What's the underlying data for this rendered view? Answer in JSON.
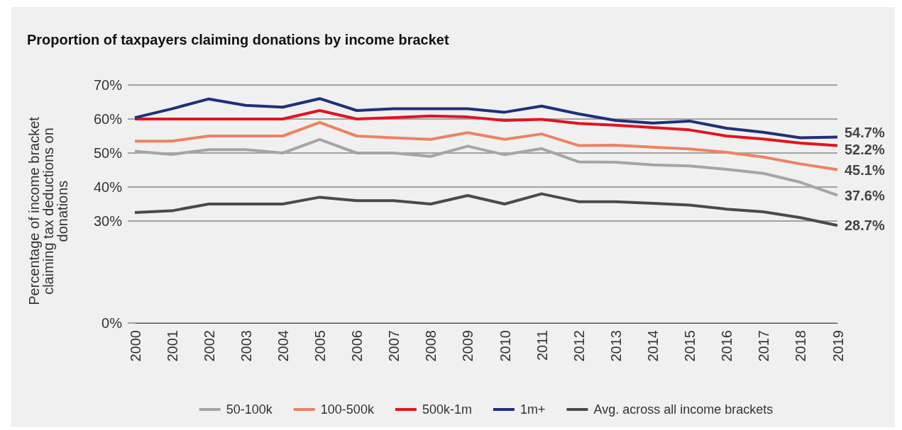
{
  "chart_data": {
    "type": "line",
    "title": "Proportion of taxpayers claiming donations by income bracket",
    "ylabel": "Percentage of income bracket claiming tax deductions on donations",
    "categories": [
      "2000",
      "2001",
      "2002",
      "2003",
      "2004",
      "2005",
      "2006",
      "2007",
      "2008",
      "2009",
      "2010",
      "2011",
      "2012",
      "2013",
      "2014",
      "2015",
      "2016",
      "2017",
      "2018",
      "2019"
    ],
    "ylim": [
      0,
      70
    ],
    "yticks": [
      {
        "value": 0,
        "label": "0%"
      },
      {
        "value": 30,
        "label": "30%"
      },
      {
        "value": 40,
        "label": "40%"
      },
      {
        "value": 50,
        "label": "50%"
      },
      {
        "value": 60,
        "label": "60%"
      },
      {
        "value": 70,
        "label": "70%"
      }
    ],
    "grid": "y",
    "legend": "bottom",
    "marker": "none",
    "line_style": "solid",
    "series": [
      {
        "name": "50-100k",
        "color": "#a5a5a8",
        "values": [
          50.5,
          49.6,
          51,
          51,
          50,
          54,
          50,
          50,
          49,
          52,
          49.5,
          51.3,
          47.4,
          47.3,
          46.5,
          46.2,
          45.2,
          44,
          41.4,
          37.6
        ],
        "value_labels": [
          null,
          null,
          null,
          null,
          null,
          null,
          null,
          null,
          null,
          null,
          null,
          null,
          null,
          null,
          null,
          null,
          null,
          null,
          null,
          "37.6%"
        ]
      },
      {
        "name": "100-500k",
        "color": "#ee8262",
        "values": [
          53.5,
          53.5,
          55,
          55,
          55,
          59,
          55,
          54.5,
          54,
          56,
          54,
          55.6,
          52.2,
          52.3,
          51.7,
          51.2,
          50.2,
          48.8,
          46.8,
          45.1
        ],
        "value_labels": [
          null,
          null,
          null,
          null,
          null,
          null,
          null,
          null,
          null,
          null,
          null,
          null,
          null,
          null,
          null,
          null,
          null,
          null,
          null,
          "45.1%"
        ]
      },
      {
        "name": "500k-1m",
        "color": "#e0141e",
        "values": [
          60,
          60,
          60,
          60,
          60,
          62.5,
          60,
          60.4,
          60.9,
          60.6,
          59.6,
          59.9,
          58.7,
          58.2,
          57.5,
          56.8,
          55,
          54.1,
          52.9,
          52.2
        ],
        "value_labels": [
          null,
          null,
          null,
          null,
          null,
          null,
          null,
          null,
          null,
          null,
          null,
          null,
          null,
          null,
          null,
          null,
          null,
          null,
          null,
          "52.2%"
        ]
      },
      {
        "name": "1m+",
        "color": "#1f2f7a",
        "values": [
          60.4,
          63,
          65.9,
          64,
          63.5,
          66,
          62.5,
          63,
          63,
          63,
          62,
          63.8,
          61.5,
          59.6,
          58.8,
          59.4,
          57.3,
          56.1,
          54.5,
          54.7
        ],
        "value_labels": [
          null,
          null,
          null,
          null,
          null,
          null,
          null,
          null,
          null,
          null,
          null,
          null,
          null,
          null,
          null,
          null,
          null,
          null,
          null,
          "54.7%"
        ]
      },
      {
        "name": "Avg. across all income brackets",
        "color": "#4a4a4a",
        "values": [
          32.5,
          33,
          35,
          35,
          35,
          37,
          36,
          36,
          35,
          37.5,
          35,
          38,
          35.7,
          35.7,
          35.2,
          34.7,
          33.5,
          32.7,
          31,
          28.7
        ],
        "value_labels": [
          null,
          null,
          null,
          null,
          null,
          null,
          null,
          null,
          null,
          null,
          null,
          null,
          null,
          null,
          null,
          null,
          null,
          null,
          null,
          "28.7%"
        ]
      }
    ]
  }
}
